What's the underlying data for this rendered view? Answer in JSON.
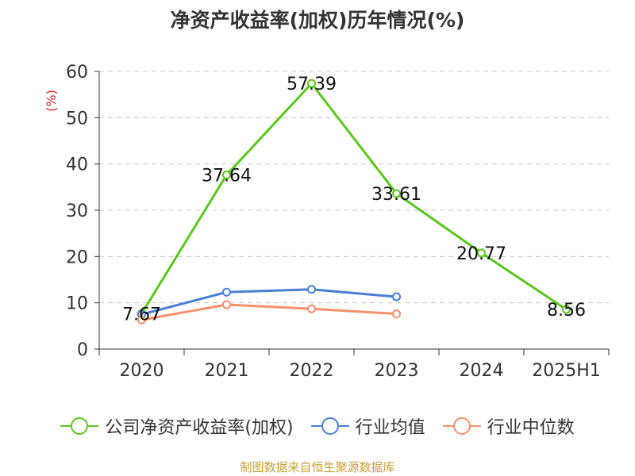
{
  "title": "净资产收益率(加权)历年情况(%)",
  "source_note": "制图数据来自恒生聚源数据库",
  "chart_data": {
    "type": "line",
    "categories": [
      "2020",
      "2021",
      "2022",
      "2023",
      "2024",
      "2025H1"
    ],
    "ylabel": "(%)",
    "ylim": [
      0,
      60
    ],
    "yticks": [
      0,
      10,
      20,
      30,
      40,
      50,
      60
    ],
    "grid": true,
    "legend_position": "bottom",
    "series": [
      {
        "name": "公司净资产收益率(加权)",
        "color": "#5cc61f",
        "values": [
          7.67,
          37.64,
          57.39,
          33.61,
          20.77,
          8.56
        ],
        "labels": [
          "7.67",
          "37.64",
          "57.39",
          "33.61",
          "20.77",
          "8.56"
        ]
      },
      {
        "name": "行业均值",
        "color": "#4a7fd4",
        "values": [
          7.5,
          12.3,
          12.9,
          11.3,
          null,
          null
        ]
      },
      {
        "name": "行业中位数",
        "color": "#f5916a",
        "values": [
          6.3,
          9.6,
          8.7,
          7.6,
          null,
          null
        ]
      }
    ]
  }
}
